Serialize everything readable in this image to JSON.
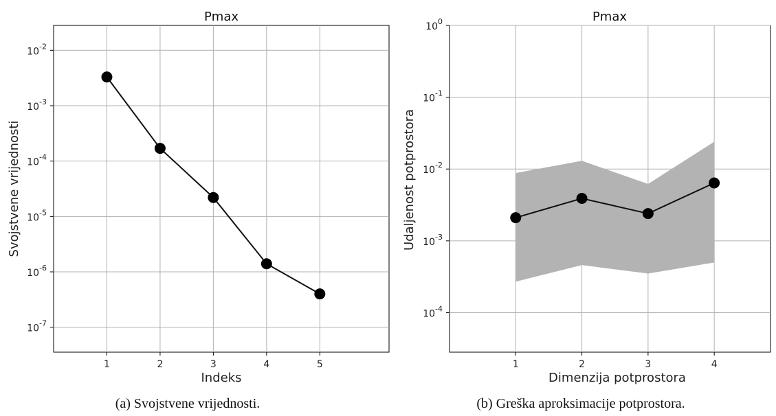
{
  "chart_data": [
    {
      "type": "line",
      "title": "Pmax",
      "xlabel": "Indeks",
      "ylabel": "Svojstvene vrijednosti",
      "yscale": "log",
      "grid": true,
      "xlim": [
        0,
        6.3
      ],
      "ylim_exp": [
        -7.45,
        -1.55
      ],
      "xticks": [
        1,
        2,
        3,
        4,
        5
      ],
      "yticks_exp": [
        -7,
        -6,
        -5,
        -4,
        -3,
        -2
      ],
      "x": [
        1,
        2,
        3,
        4,
        5
      ],
      "y": [
        0.0033,
        0.00017,
        2.2e-05,
        1.4e-06,
        4e-07
      ],
      "caption": "(a) Svojstvene vrijednosti."
    },
    {
      "type": "line",
      "title": "Pmax",
      "xlabel": "Dimenzija potprostora",
      "ylabel": "Udaljenost potprostora",
      "yscale": "log",
      "grid": true,
      "xlim": [
        0,
        4.85
      ],
      "ylim_exp": [
        -4.55,
        0
      ],
      "xticks": [
        1,
        2,
        3,
        4
      ],
      "yticks_exp": [
        -4,
        -3,
        -2,
        -1,
        0
      ],
      "x": [
        1,
        2,
        3,
        4
      ],
      "y": [
        0.0021,
        0.0039,
        0.0024,
        0.0064
      ],
      "band_lower": [
        0.00027,
        0.00046,
        0.00035,
        0.0005
      ],
      "band_upper": [
        0.0088,
        0.013,
        0.0062,
        0.024
      ],
      "caption": "(b) Greška aproksimacije potprostora."
    }
  ]
}
